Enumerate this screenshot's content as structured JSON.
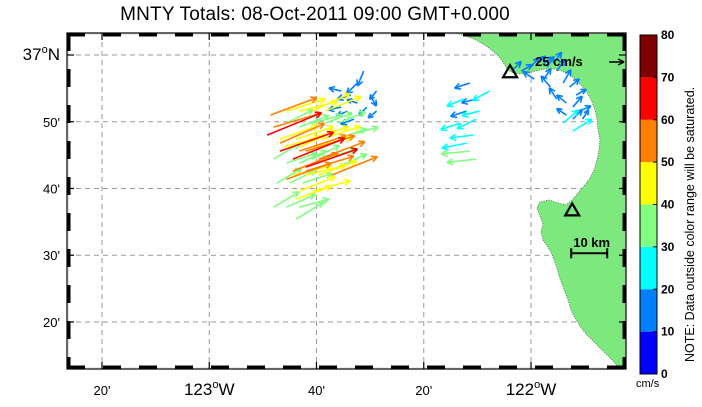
{
  "title": "MNTY Totals: 08-Oct-2011 09:00 GMT+0.000",
  "lat_labels": [
    {
      "lat": 37.0,
      "main": "37",
      "deg": "o",
      "hem": "N"
    },
    {
      "lat": 36.8333,
      "main": "50'"
    },
    {
      "lat": 36.6667,
      "main": "40'"
    },
    {
      "lat": 36.5,
      "main": "30'"
    },
    {
      "lat": 36.3333,
      "main": "20'"
    }
  ],
  "lon_labels": [
    {
      "lon": -123.3333,
      "main": "20'"
    },
    {
      "lon": -123.0,
      "main": "123",
      "deg": "o",
      "hem": "W"
    },
    {
      "lon": -122.6667,
      "main": "40'"
    },
    {
      "lon": -122.3333,
      "main": "20'"
    },
    {
      "lon": -122.0,
      "main": "122",
      "deg": "o",
      "hem": "W"
    }
  ],
  "grid": true,
  "land_color": "#7de87d",
  "scale_arrow": {
    "label": "25 cm/s",
    "speed": 25,
    "lon": -121.95,
    "lat": 36.985
  },
  "scale_bar": {
    "label": "10 km",
    "lon": -121.875,
    "lat": 36.505
  },
  "sites": [
    {
      "lon": -122.065,
      "lat": 36.957
    },
    {
      "lon": -121.872,
      "lat": 36.612
    }
  ],
  "colorbar": {
    "ticks": [
      "0",
      "10",
      "20",
      "30",
      "40",
      "50",
      "60",
      "70",
      "80"
    ],
    "colors": [
      "#0000ff",
      "#0080ff",
      "#00ffff",
      "#80ff80",
      "#ffff00",
      "#ff8000",
      "#ff0000",
      "#800000"
    ],
    "unit": "cm/s",
    "note": "NOTE: Data outside color range will be saturated."
  },
  "vectors": [
    [
      -122.52,
      36.96,
      -5,
      12,
      18
    ],
    [
      -122.54,
      36.93,
      -8,
      8,
      17
    ],
    [
      -122.48,
      36.91,
      -5,
      6,
      12
    ],
    [
      -122.56,
      36.9,
      -10,
      3,
      16
    ],
    [
      -122.59,
      36.91,
      -8,
      -2,
      14
    ],
    [
      -122.59,
      36.87,
      -9,
      2,
      15
    ],
    [
      -122.57,
      36.86,
      -7,
      3,
      13
    ],
    [
      -122.54,
      36.88,
      -6,
      -2,
      12
    ],
    [
      -122.5,
      36.9,
      4,
      7,
      14
    ],
    [
      -122.51,
      36.87,
      -6,
      6,
      13
    ],
    [
      -122.48,
      36.86,
      -5,
      4,
      12
    ],
    [
      -122.55,
      36.84,
      -8,
      3,
      16
    ],
    [
      -122.19,
      36.93,
      -6,
      2,
      18
    ],
    [
      -122.21,
      36.89,
      -7,
      3,
      20
    ],
    [
      -122.17,
      36.89,
      -8,
      2,
      17
    ],
    [
      -122.2,
      36.86,
      -9,
      3,
      19
    ],
    [
      -122.16,
      36.86,
      -8,
      2,
      20
    ],
    [
      -122.22,
      36.83,
      -6,
      2,
      23
    ],
    [
      -122.18,
      36.8,
      -8,
      1,
      26
    ],
    [
      -122.2,
      36.78,
      -10,
      2,
      28
    ],
    [
      -122.19,
      36.76,
      -10,
      1,
      32
    ],
    [
      -122.17,
      36.74,
      -9,
      1,
      33
    ],
    [
      -122.17,
      36.84,
      -6,
      3,
      24
    ],
    [
      -122.13,
      36.91,
      -7,
      4,
      21
    ],
    [
      -122.06,
      36.96,
      4,
      -4,
      15
    ],
    [
      -122.03,
      36.96,
      5,
      -3,
      14
    ],
    [
      -122.0,
      36.97,
      5,
      -6,
      13
    ],
    [
      -121.98,
      36.98,
      6,
      -5,
      12
    ],
    [
      -121.96,
      36.98,
      7,
      -4,
      13
    ],
    [
      -121.95,
      36.97,
      4,
      -6,
      14
    ],
    [
      -121.93,
      36.98,
      6,
      -8,
      15
    ],
    [
      -121.92,
      36.96,
      5,
      -7,
      16
    ],
    [
      -121.96,
      36.94,
      4,
      -6,
      14
    ],
    [
      -121.99,
      36.94,
      -6,
      -4,
      15
    ],
    [
      -121.94,
      36.92,
      -5,
      -6,
      16
    ],
    [
      -121.9,
      36.93,
      4,
      -7,
      17
    ],
    [
      -121.88,
      36.92,
      6,
      -5,
      14
    ],
    [
      -121.86,
      36.9,
      7,
      -4,
      13
    ],
    [
      -121.89,
      36.88,
      -6,
      -5,
      14
    ],
    [
      -121.92,
      36.89,
      -4,
      -6,
      15
    ],
    [
      -121.87,
      36.87,
      6,
      -7,
      16
    ],
    [
      -121.85,
      36.86,
      7,
      -3,
      14
    ],
    [
      -121.89,
      36.85,
      -6,
      -4,
      13
    ],
    [
      -121.87,
      36.84,
      5,
      -5,
      15
    ],
    [
      -121.84,
      36.84,
      4,
      -6,
      12
    ],
    [
      -121.9,
      36.83,
      7,
      -6,
      22
    ],
    [
      -121.87,
      36.81,
      8,
      -5,
      25
    ],
    [
      -122.76,
      36.83,
      12,
      -6,
      33
    ],
    [
      -122.72,
      36.82,
      10,
      -4,
      35
    ],
    [
      -122.68,
      36.83,
      11,
      -3,
      34
    ],
    [
      -122.64,
      36.83,
      8,
      -3,
      32
    ],
    [
      -122.6,
      36.83,
      10,
      -4,
      33
    ],
    [
      -122.57,
      36.8,
      12,
      -3,
      35
    ],
    [
      -122.6,
      36.79,
      11,
      -4,
      34
    ],
    [
      -122.8,
      36.74,
      10,
      -6,
      34
    ],
    [
      -122.76,
      36.73,
      12,
      -4,
      35
    ],
    [
      -122.72,
      36.73,
      11,
      -5,
      33
    ],
    [
      -122.68,
      36.74,
      10,
      -5,
      34
    ],
    [
      -122.64,
      36.74,
      12,
      -4,
      36
    ],
    [
      -122.6,
      36.72,
      11,
      -5,
      35
    ],
    [
      -122.79,
      36.68,
      10,
      -6,
      32
    ],
    [
      -122.75,
      36.68,
      10,
      -5,
      33
    ],
    [
      -122.71,
      36.68,
      9,
      -3,
      34
    ],
    [
      -122.8,
      36.62,
      10,
      -6,
      33
    ],
    [
      -122.76,
      36.62,
      9,
      -4,
      35
    ],
    [
      -122.72,
      36.62,
      11,
      -3,
      34
    ],
    [
      -122.73,
      36.59,
      8,
      -5,
      36
    ],
    [
      -122.76,
      36.86,
      16,
      -5,
      45
    ],
    [
      -122.72,
      36.86,
      12,
      -3,
      44
    ],
    [
      -122.68,
      36.86,
      13,
      -6,
      46
    ],
    [
      -122.64,
      36.86,
      10,
      -4,
      43
    ],
    [
      -122.78,
      36.79,
      14,
      -5,
      45
    ],
    [
      -122.73,
      36.79,
      12,
      -4,
      44
    ],
    [
      -122.69,
      36.79,
      13,
      -4,
      46
    ],
    [
      -122.65,
      36.79,
      12,
      -4,
      45
    ],
    [
      -122.77,
      36.77,
      14,
      -4,
      43
    ],
    [
      -122.72,
      36.77,
      11,
      -5,
      44
    ],
    [
      -122.68,
      36.77,
      12,
      -3,
      45
    ],
    [
      -122.74,
      36.7,
      12,
      -3,
      44
    ],
    [
      -122.7,
      36.7,
      12,
      -3,
      46
    ],
    [
      -122.66,
      36.7,
      11,
      -4,
      45
    ],
    [
      -122.72,
      36.66,
      10,
      -4,
      43
    ],
    [
      -122.68,
      36.66,
      11,
      -3,
      44
    ],
    [
      -122.73,
      36.64,
      11,
      -4,
      42
    ],
    [
      -122.81,
      36.85,
      16,
      -6,
      55
    ],
    [
      -122.8,
      36.82,
      17,
      -5,
      56
    ],
    [
      -122.78,
      36.78,
      16,
      -7,
      54
    ],
    [
      -122.72,
      36.76,
      18,
      -6,
      55
    ],
    [
      -122.7,
      36.76,
      16,
      -5,
      57
    ],
    [
      -122.66,
      36.74,
      16,
      -6,
      55
    ],
    [
      -122.74,
      36.71,
      15,
      -6,
      54
    ],
    [
      -122.7,
      36.71,
      16,
      -5,
      56
    ],
    [
      -122.62,
      36.7,
      15,
      -6,
      55
    ],
    [
      -122.76,
      36.69,
      14,
      -5,
      53
    ],
    [
      -122.82,
      36.8,
      22,
      -9,
      65
    ],
    [
      -122.78,
      36.76,
      20,
      -7,
      63
    ],
    [
      -122.74,
      36.74,
      20,
      -8,
      62
    ],
    [
      -122.7,
      36.72,
      20,
      -7,
      61
    ]
  ]
}
